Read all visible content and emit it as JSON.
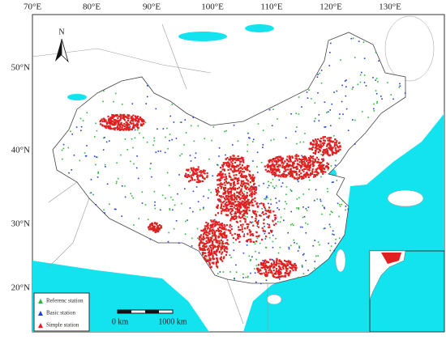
{
  "map": {
    "lon_labels": [
      "70°E",
      "80°E",
      "90°E",
      "100°E",
      "110°E",
      "120°E",
      "130°E"
    ],
    "lat_labels": [
      "50°N",
      "40°N",
      "30°N",
      "20°N"
    ],
    "north": "N",
    "legend": [
      {
        "label": "Referenc station",
        "color": "#2db83d"
      },
      {
        "label": "Basic station",
        "color": "#1f3ddb"
      },
      {
        "label": "Simple station",
        "color": "#e02020"
      }
    ],
    "scale_labels": [
      "0 km",
      "1000 km"
    ]
  }
}
